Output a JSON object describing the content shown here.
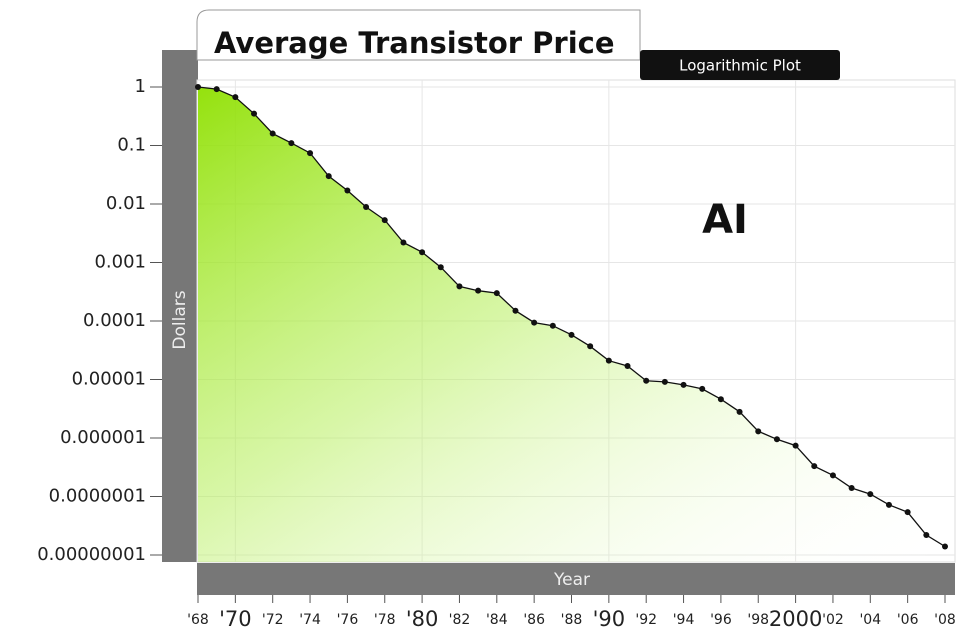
{
  "chart_data": {
    "type": "line",
    "title": "Average Transistor Price",
    "subtitle": "Logarithmic Plot",
    "xlabel": "Year",
    "ylabel": "Dollars",
    "annotation": "AI",
    "yscale": "log",
    "grid": true,
    "color": "#111111",
    "fill": "#8fe000",
    "x": [
      1968,
      1969,
      1970,
      1971,
      1972,
      1973,
      1974,
      1975,
      1976,
      1977,
      1978,
      1979,
      1980,
      1981,
      1982,
      1983,
      1984,
      1985,
      1986,
      1987,
      1988,
      1989,
      1990,
      1991,
      1992,
      1993,
      1994,
      1995,
      1996,
      1997,
      1998,
      1999,
      2000,
      2001,
      2002,
      2003,
      2004,
      2005,
      2006,
      2007,
      2008
    ],
    "values": [
      1,
      0.92,
      0.67,
      0.35,
      0.16,
      0.11,
      0.074,
      0.03,
      0.017,
      0.0089,
      0.0053,
      0.0022,
      0.0015,
      0.00083,
      0.00039,
      0.00033,
      0.0003,
      0.00015,
      9.4e-05,
      8.3e-05,
      5.8e-05,
      3.7e-05,
      2.1e-05,
      1.7e-05,
      9.5e-06,
      9.1e-06,
      8.1e-06,
      6.9e-06,
      4.6e-06,
      2.8e-06,
      1.3e-06,
      9.5e-07,
      7.4e-07,
      3.3e-07,
      2.3e-07,
      1.4e-07,
      1.1e-07,
      7.2e-08,
      5.4e-08,
      2.2e-08,
      1.4e-08
    ],
    "xlim": [
      1968,
      2008
    ],
    "xticks": [
      {
        "value": 1968,
        "label": "'68"
      },
      {
        "value": 1970,
        "label": "'70"
      },
      {
        "value": 1972,
        "label": "'72"
      },
      {
        "value": 1974,
        "label": "'74"
      },
      {
        "value": 1976,
        "label": "'76"
      },
      {
        "value": 1978,
        "label": "'78"
      },
      {
        "value": 1980,
        "label": "'80"
      },
      {
        "value": 1982,
        "label": "'82"
      },
      {
        "value": 1984,
        "label": "'84"
      },
      {
        "value": 1986,
        "label": "'86"
      },
      {
        "value": 1988,
        "label": "'88"
      },
      {
        "value": 1990,
        "label": "'90"
      },
      {
        "value": 1992,
        "label": "'92"
      },
      {
        "value": 1994,
        "label": "'94"
      },
      {
        "value": 1996,
        "label": "'96"
      },
      {
        "value": 1998,
        "label": "'98"
      },
      2000,
      {
        "value": 2002,
        "label": "'02"
      },
      {
        "value": 2004,
        "label": "'04"
      },
      {
        "value": 2006,
        "label": "'06"
      },
      {
        "value": 2008,
        "label": "'08"
      }
    ],
    "ylim": [
      1e-08,
      1
    ],
    "yticks": [
      1,
      0.1,
      0.01,
      0.001,
      0.0001,
      1e-05,
      1e-06,
      {
        "value": 1e-07,
        "label": "0.0000001"
      },
      {
        "value": 1e-08,
        "label": "0.00000001"
      }
    ]
  }
}
